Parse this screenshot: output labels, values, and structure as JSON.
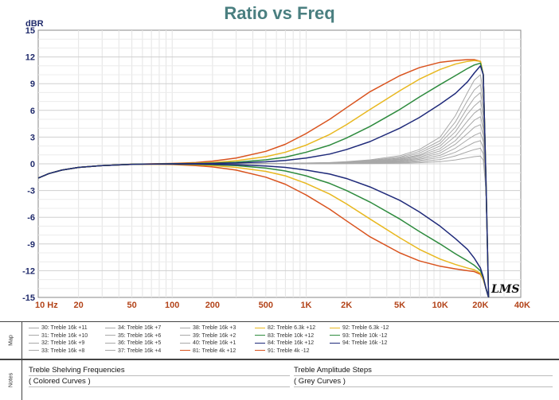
{
  "chart_data": {
    "type": "line",
    "title": "Ratio vs Freq",
    "ylabel": "dBR",
    "ylim": [
      -15,
      15
    ],
    "xlim": [
      10,
      40000
    ],
    "xscale": "log",
    "yticks": [
      15,
      12,
      9,
      6,
      3,
      0,
      -3,
      -6,
      -9,
      -12,
      -15
    ],
    "xticks": [
      {
        "value": 10,
        "label": "10  Hz"
      },
      {
        "value": 20,
        "label": "20"
      },
      {
        "value": 50,
        "label": "50"
      },
      {
        "value": 100,
        "label": "100"
      },
      {
        "value": 200,
        "label": "200"
      },
      {
        "value": 500,
        "label": "500"
      },
      {
        "value": 1000,
        "label": "1K"
      },
      {
        "value": 2000,
        "label": "2K"
      },
      {
        "value": 5000,
        "label": "5K"
      },
      {
        "value": 10000,
        "label": "10K"
      },
      {
        "value": 20000,
        "label": "20K"
      },
      {
        "value": 40000,
        "label": "40K"
      }
    ],
    "grid": true,
    "signature": "LMS",
    "x": [
      10,
      12,
      15,
      20,
      30,
      50,
      70,
      100,
      150,
      200,
      300,
      500,
      700,
      1000,
      1500,
      2000,
      3000,
      5000,
      7000,
      10000,
      13000,
      16000,
      18000,
      20000,
      21000,
      22000,
      23000
    ],
    "series": [
      {
        "name": "30: Treble 16k +11",
        "color": "#a8a8a8",
        "values": [
          -1.6,
          -1.1,
          -0.7,
          -0.4,
          -0.2,
          -0.06,
          -0.02,
          0,
          0,
          0.01,
          0.02,
          0.04,
          0.06,
          0.1,
          0.15,
          0.25,
          0.45,
          0.9,
          1.6,
          3.0,
          5.4,
          8.0,
          9.4,
          10.0,
          8.0,
          -3.0,
          -15.0
        ]
      },
      {
        "name": "31: Treble 16k +10",
        "color": "#a8a8a8",
        "values": [
          -1.6,
          -1.1,
          -0.7,
          -0.4,
          -0.2,
          -0.06,
          -0.02,
          0,
          0,
          0.01,
          0.02,
          0.04,
          0.05,
          0.08,
          0.12,
          0.2,
          0.38,
          0.75,
          1.4,
          2.6,
          4.7,
          7.1,
          8.3,
          8.9,
          7.0,
          -3.0,
          -15.0
        ]
      },
      {
        "name": "32: Treble 16k +9",
        "color": "#a8a8a8",
        "values": [
          -1.6,
          -1.1,
          -0.7,
          -0.4,
          -0.2,
          -0.06,
          -0.02,
          0,
          0,
          0.01,
          0.02,
          0.03,
          0.04,
          0.07,
          0.1,
          0.17,
          0.32,
          0.65,
          1.2,
          2.3,
          4.1,
          6.3,
          7.4,
          8.0,
          6.2,
          -3.0,
          -15.0
        ]
      },
      {
        "name": "33: Treble 16k +8",
        "color": "#a8a8a8",
        "values": [
          -1.6,
          -1.1,
          -0.7,
          -0.4,
          -0.2,
          -0.06,
          -0.02,
          0,
          0,
          0.01,
          0.02,
          0.03,
          0.04,
          0.06,
          0.09,
          0.15,
          0.28,
          0.55,
          1.0,
          2.0,
          3.6,
          5.6,
          6.5,
          7.1,
          5.4,
          -3.0,
          -15.0
        ]
      },
      {
        "name": "34: Treble 16k +7",
        "color": "#a8a8a8",
        "values": [
          -1.6,
          -1.1,
          -0.7,
          -0.4,
          -0.2,
          -0.06,
          -0.02,
          0,
          0,
          0.01,
          0.01,
          0.02,
          0.03,
          0.05,
          0.08,
          0.13,
          0.24,
          0.48,
          0.9,
          1.7,
          3.1,
          4.8,
          5.7,
          6.2,
          4.6,
          -3.0,
          -15.0
        ]
      },
      {
        "name": "35: Treble 16k +6",
        "color": "#a8a8a8",
        "values": [
          -1.6,
          -1.1,
          -0.7,
          -0.4,
          -0.2,
          -0.06,
          -0.02,
          0,
          0,
          0.01,
          0.01,
          0.02,
          0.03,
          0.04,
          0.07,
          0.11,
          0.2,
          0.4,
          0.75,
          1.45,
          2.6,
          4.1,
          4.9,
          5.3,
          3.9,
          -3.0,
          -15.0
        ]
      },
      {
        "name": "36: Treble 16k +5",
        "color": "#a8a8a8",
        "values": [
          -1.6,
          -1.1,
          -0.7,
          -0.4,
          -0.2,
          -0.06,
          -0.02,
          0,
          0,
          0.01,
          0.01,
          0.02,
          0.02,
          0.03,
          0.05,
          0.09,
          0.17,
          0.33,
          0.62,
          1.2,
          2.2,
          3.4,
          4.1,
          4.4,
          3.2,
          -3.0,
          -15.0
        ]
      },
      {
        "name": "37: Treble 16k +4",
        "color": "#a8a8a8",
        "values": [
          -1.6,
          -1.1,
          -0.7,
          -0.4,
          -0.2,
          -0.06,
          -0.02,
          0,
          0,
          0,
          0.01,
          0.01,
          0.02,
          0.03,
          0.04,
          0.07,
          0.13,
          0.27,
          0.5,
          0.95,
          1.75,
          2.7,
          3.2,
          3.5,
          2.5,
          -3.0,
          -15.0
        ]
      },
      {
        "name": "38: Treble 16k +3",
        "color": "#a8a8a8",
        "values": [
          -1.6,
          -1.1,
          -0.7,
          -0.4,
          -0.2,
          -0.06,
          -0.02,
          0,
          0,
          0,
          0.01,
          0.01,
          0.01,
          0.02,
          0.03,
          0.05,
          0.1,
          0.2,
          0.37,
          0.72,
          1.3,
          2.0,
          2.4,
          2.6,
          1.8,
          -3.0,
          -15.0
        ]
      },
      {
        "name": "39: Treble 16k +2",
        "color": "#a8a8a8",
        "values": [
          -1.6,
          -1.1,
          -0.7,
          -0.4,
          -0.2,
          -0.06,
          -0.02,
          0,
          0,
          0,
          0,
          0.01,
          0.01,
          0.01,
          0.02,
          0.03,
          0.07,
          0.13,
          0.25,
          0.48,
          0.88,
          1.35,
          1.6,
          1.75,
          1.1,
          -3.0,
          -15.0
        ]
      },
      {
        "name": "40: Treble 16k +1",
        "color": "#a8a8a8",
        "values": [
          -1.6,
          -1.1,
          -0.7,
          -0.4,
          -0.2,
          -0.06,
          -0.02,
          0,
          0,
          0,
          0,
          0,
          0,
          0.01,
          0.01,
          0.02,
          0.03,
          0.07,
          0.12,
          0.24,
          0.44,
          0.67,
          0.8,
          0.87,
          0.4,
          -3.0,
          -15.0
        ]
      },
      {
        "name": "81: Treble 4k +12",
        "color": "#d9531e",
        "values": [
          -1.6,
          -1.1,
          -0.7,
          -0.4,
          -0.2,
          -0.05,
          0,
          0.05,
          0.15,
          0.3,
          0.65,
          1.4,
          2.2,
          3.4,
          5.0,
          6.3,
          8.1,
          9.9,
          10.8,
          11.4,
          11.6,
          11.7,
          11.7,
          11.5,
          10.0,
          -2.0,
          -15.0
        ]
      },
      {
        "name": "82: Treble 6.3k +12",
        "color": "#e8b820",
        "values": [
          -1.6,
          -1.1,
          -0.7,
          -0.4,
          -0.2,
          -0.05,
          -0.01,
          0.02,
          0.08,
          0.15,
          0.35,
          0.8,
          1.3,
          2.1,
          3.3,
          4.4,
          6.1,
          8.2,
          9.5,
          10.6,
          11.2,
          11.5,
          11.6,
          11.5,
          10.0,
          -2.0,
          -15.0
        ]
      },
      {
        "name": "83: Treble 10k +12",
        "color": "#2e8b3e",
        "values": [
          -1.6,
          -1.1,
          -0.7,
          -0.4,
          -0.2,
          -0.06,
          -0.02,
          0.01,
          0.04,
          0.08,
          0.18,
          0.45,
          0.75,
          1.3,
          2.1,
          2.9,
          4.2,
          6.1,
          7.5,
          8.9,
          9.9,
          10.7,
          11.1,
          11.3,
          10.0,
          -2.0,
          -15.0
        ]
      },
      {
        "name": "84: Treble 16k +12",
        "color": "#1f2a7a",
        "values": [
          -1.6,
          -1.1,
          -0.7,
          -0.4,
          -0.2,
          -0.06,
          -0.02,
          0,
          0.02,
          0.04,
          0.09,
          0.22,
          0.38,
          0.65,
          1.1,
          1.6,
          2.5,
          4.0,
          5.2,
          6.7,
          7.9,
          9.2,
          10.2,
          11.0,
          10.0,
          -2.0,
          -15.0
        ]
      },
      {
        "name": "91: Treble 4k -12",
        "color": "#d9531e",
        "values": [
          -1.6,
          -1.1,
          -0.7,
          -0.4,
          -0.2,
          -0.07,
          -0.04,
          -0.08,
          -0.2,
          -0.35,
          -0.7,
          -1.5,
          -2.3,
          -3.5,
          -5.1,
          -6.4,
          -8.2,
          -10.0,
          -10.9,
          -11.5,
          -11.8,
          -12.0,
          -12.1,
          -12.4,
          -13.0,
          -14.0,
          -15.0
        ]
      },
      {
        "name": "92: Treble 6.3k -12",
        "color": "#e8b820",
        "values": [
          -1.6,
          -1.1,
          -0.7,
          -0.4,
          -0.2,
          -0.06,
          -0.03,
          -0.05,
          -0.11,
          -0.2,
          -0.4,
          -0.85,
          -1.35,
          -2.2,
          -3.4,
          -4.5,
          -6.2,
          -8.3,
          -9.6,
          -10.7,
          -11.3,
          -11.7,
          -11.9,
          -12.3,
          -13.0,
          -14.0,
          -15.0
        ]
      },
      {
        "name": "93: Treble 10k -12",
        "color": "#2e8b3e",
        "values": [
          -1.6,
          -1.1,
          -0.7,
          -0.4,
          -0.2,
          -0.06,
          -0.02,
          -0.03,
          -0.06,
          -0.1,
          -0.2,
          -0.48,
          -0.8,
          -1.35,
          -2.2,
          -3.0,
          -4.3,
          -6.2,
          -7.6,
          -9.0,
          -10.1,
          -10.9,
          -11.4,
          -12.0,
          -12.8,
          -14.0,
          -15.0
        ]
      },
      {
        "name": "94: Treble 16k -12",
        "color": "#1f2a7a",
        "values": [
          -1.6,
          -1.1,
          -0.7,
          -0.4,
          -0.2,
          -0.06,
          -0.02,
          -0.02,
          -0.03,
          -0.05,
          -0.1,
          -0.24,
          -0.4,
          -0.7,
          -1.15,
          -1.65,
          -2.6,
          -4.1,
          -5.4,
          -7.0,
          -8.4,
          -9.6,
          -10.6,
          -11.7,
          -12.7,
          -14.0,
          -15.0
        ]
      }
    ]
  },
  "map": {
    "label": "Map",
    "col1": [
      {
        "text": "30: Treble 16k +11",
        "color": "#a8a8a8"
      },
      {
        "text": "31: Treble 16k +10",
        "color": "#a8a8a8"
      },
      {
        "text": "32: Treble 16k +9",
        "color": "#a8a8a8"
      },
      {
        "text": "33: Treble 16k +8",
        "color": "#a8a8a8"
      }
    ],
    "col2": [
      {
        "text": "34: Treble 16k +7",
        "color": "#a8a8a8"
      },
      {
        "text": "35: Treble 16k +6",
        "color": "#a8a8a8"
      },
      {
        "text": "36: Treble 16k +5",
        "color": "#a8a8a8"
      },
      {
        "text": "37: Treble 16k +4",
        "color": "#a8a8a8"
      }
    ],
    "col3": [
      {
        "text": "38: Treble 16k +3",
        "color": "#a8a8a8"
      },
      {
        "text": "39: Treble 16k +2",
        "color": "#a8a8a8"
      },
      {
        "text": "40: Treble 16k +1",
        "color": "#a8a8a8"
      },
      {
        "text": "81: Treble 4k +12",
        "color": "#d9531e"
      }
    ],
    "col4": [
      {
        "text": "82: Treble 6.3k +12",
        "color": "#e8b820"
      },
      {
        "text": "83: Treble 10k +12",
        "color": "#2e8b3e"
      },
      {
        "text": "84: Treble 16k +12",
        "color": "#1f2a7a"
      },
      {
        "text": "91: Treble 4k -12",
        "color": "#d9531e"
      }
    ],
    "col5": [
      {
        "text": "92: Treble 6.3k -12",
        "color": "#e8b820"
      },
      {
        "text": "93: Treble 10k -12",
        "color": "#2e8b3e"
      },
      {
        "text": "94: Treble 16k -12",
        "color": "#1f2a7a"
      }
    ]
  },
  "notes": {
    "label": "Notes",
    "left_line1": "Treble Shelving Frequencies",
    "left_line2": "( Colored Curves )",
    "right_line1": "Treble Amplitude Steps",
    "right_line2": "( Grey Curves )"
  }
}
